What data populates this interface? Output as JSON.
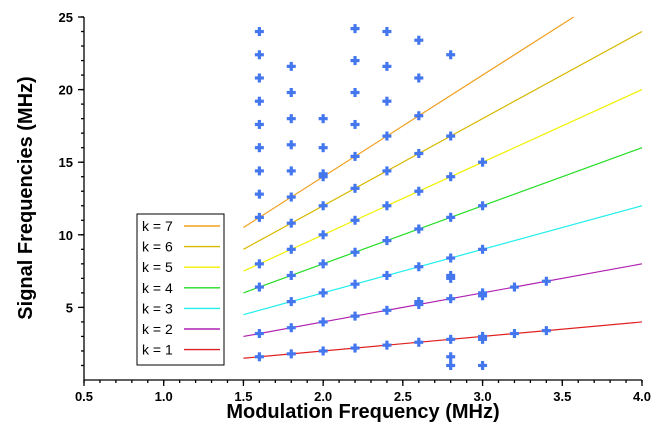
{
  "chart_data": {
    "type": "scatter",
    "title": "",
    "xlabel": "Modulation Frequency (MHz)",
    "ylabel": "Signal Frequencies (MHz)",
    "xlim": [
      0.5,
      4.0
    ],
    "ylim": [
      0,
      25
    ],
    "x_ticks": [
      "0.5",
      "1.0",
      "1.5",
      "2.0",
      "2.5",
      "3.0",
      "3.5",
      "4.0"
    ],
    "x_tick_values": [
      0.5,
      1.0,
      1.5,
      2.0,
      2.5,
      3.0,
      3.5,
      4.0
    ],
    "y_ticks": [
      "5",
      "10",
      "15",
      "20",
      "25"
    ],
    "y_tick_values": [
      5,
      10,
      15,
      20,
      25
    ],
    "grid": false,
    "legend_position": "bottom-left",
    "lines": [
      {
        "name": "k = 7",
        "k": 7,
        "color": "#f0a020"
      },
      {
        "name": "k = 6",
        "k": 6,
        "color": "#d8b800"
      },
      {
        "name": "k = 5",
        "k": 5,
        "color": "#f0f000"
      },
      {
        "name": "k = 4",
        "k": 4,
        "color": "#22dd22"
      },
      {
        "name": "k = 3",
        "k": 3,
        "color": "#22eeee"
      },
      {
        "name": "k = 2",
        "k": 2,
        "color": "#b020b0"
      },
      {
        "name": "k = 1",
        "k": 1,
        "color": "#e02020"
      }
    ],
    "line_x_range": [
      1.5,
      4.0
    ],
    "marker_color": "#4477ee",
    "points": [
      [
        1.6,
        1.6
      ],
      [
        1.6,
        3.2
      ],
      [
        1.6,
        6.4
      ],
      [
        1.6,
        8.0
      ],
      [
        1.6,
        11.2
      ],
      [
        1.6,
        12.8
      ],
      [
        1.6,
        14.4
      ],
      [
        1.6,
        16.0
      ],
      [
        1.6,
        17.6
      ],
      [
        1.6,
        19.2
      ],
      [
        1.6,
        20.8
      ],
      [
        1.6,
        22.4
      ],
      [
        1.6,
        24.0
      ],
      [
        1.8,
        1.8
      ],
      [
        1.8,
        3.6
      ],
      [
        1.8,
        5.4
      ],
      [
        1.8,
        7.2
      ],
      [
        1.8,
        9.0
      ],
      [
        1.8,
        10.8
      ],
      [
        1.8,
        12.6
      ],
      [
        1.8,
        14.4
      ],
      [
        1.8,
        16.2
      ],
      [
        1.8,
        18.0
      ],
      [
        1.8,
        19.8
      ],
      [
        1.8,
        21.6
      ],
      [
        2.0,
        2.0
      ],
      [
        2.0,
        4.0
      ],
      [
        2.0,
        6.0
      ],
      [
        2.0,
        8.0
      ],
      [
        2.0,
        10.0
      ],
      [
        2.0,
        12.0
      ],
      [
        2.0,
        14.0
      ],
      [
        2.0,
        14.2
      ],
      [
        2.0,
        16.0
      ],
      [
        2.0,
        18.0
      ],
      [
        2.2,
        2.2
      ],
      [
        2.2,
        4.4
      ],
      [
        2.2,
        6.6
      ],
      [
        2.2,
        8.8
      ],
      [
        2.2,
        11.0
      ],
      [
        2.2,
        13.2
      ],
      [
        2.2,
        15.4
      ],
      [
        2.2,
        17.6
      ],
      [
        2.2,
        19.8
      ],
      [
        2.2,
        22.0
      ],
      [
        2.2,
        24.2
      ],
      [
        2.4,
        2.4
      ],
      [
        2.4,
        4.8
      ],
      [
        2.4,
        7.2
      ],
      [
        2.4,
        9.6
      ],
      [
        2.4,
        12.0
      ],
      [
        2.4,
        14.4
      ],
      [
        2.4,
        16.8
      ],
      [
        2.4,
        19.2
      ],
      [
        2.4,
        21.6
      ],
      [
        2.4,
        24.0
      ],
      [
        2.6,
        2.6
      ],
      [
        2.6,
        5.2
      ],
      [
        2.6,
        5.4
      ],
      [
        2.6,
        7.8
      ],
      [
        2.6,
        10.4
      ],
      [
        2.6,
        13.0
      ],
      [
        2.6,
        15.6
      ],
      [
        2.6,
        18.2
      ],
      [
        2.6,
        20.8
      ],
      [
        2.6,
        23.4
      ],
      [
        2.8,
        1.0
      ],
      [
        2.8,
        1.6
      ],
      [
        2.8,
        2.8
      ],
      [
        2.8,
        5.6
      ],
      [
        2.8,
        7.0
      ],
      [
        2.8,
        7.2
      ],
      [
        2.8,
        8.4
      ],
      [
        2.8,
        11.2
      ],
      [
        2.8,
        14.0
      ],
      [
        2.8,
        16.8
      ],
      [
        2.8,
        22.4
      ],
      [
        3.0,
        1.0
      ],
      [
        3.0,
        2.8
      ],
      [
        3.0,
        3.0
      ],
      [
        3.0,
        5.8
      ],
      [
        3.0,
        6.0
      ],
      [
        3.0,
        9.0
      ],
      [
        3.0,
        12.0
      ],
      [
        3.0,
        15.0
      ],
      [
        3.2,
        3.2
      ],
      [
        3.2,
        6.4
      ],
      [
        3.4,
        3.4
      ],
      [
        3.4,
        6.8
      ]
    ]
  }
}
